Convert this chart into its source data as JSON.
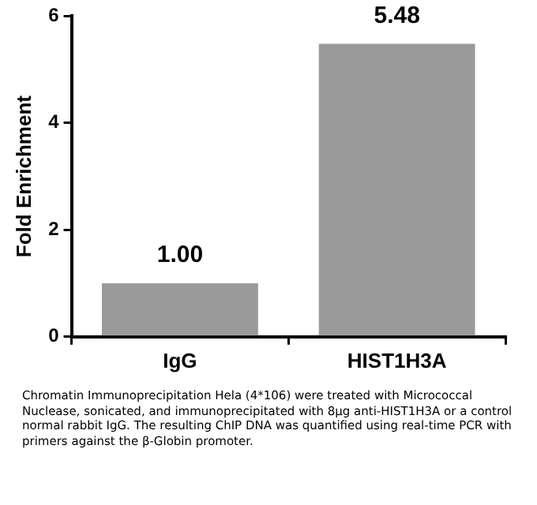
{
  "chart_data": {
    "type": "bar",
    "ylabel": "Fold Enrichment",
    "categories": [
      "IgG",
      "HIST1H3A"
    ],
    "values": [
      1.0,
      5.48
    ],
    "color": "#9a9a9a",
    "ylim": [
      0,
      6
    ],
    "yticks": [
      0,
      2,
      4,
      6
    ],
    "grid": false,
    "legend": false,
    "value_labels": [
      "1.00",
      "5.48"
    ],
    "annotations": [
      "Chromatin Immunoprecipitation Hela (4*106) were treated with Micrococcal Nuclease, sonicated, and immunoprecipitated with 8μg anti-HIST1H3A or a control normal rabbit IgG. The resulting ChIP DNA was quantified using real-time PCR with primers against the β-Globin promoter."
    ]
  }
}
